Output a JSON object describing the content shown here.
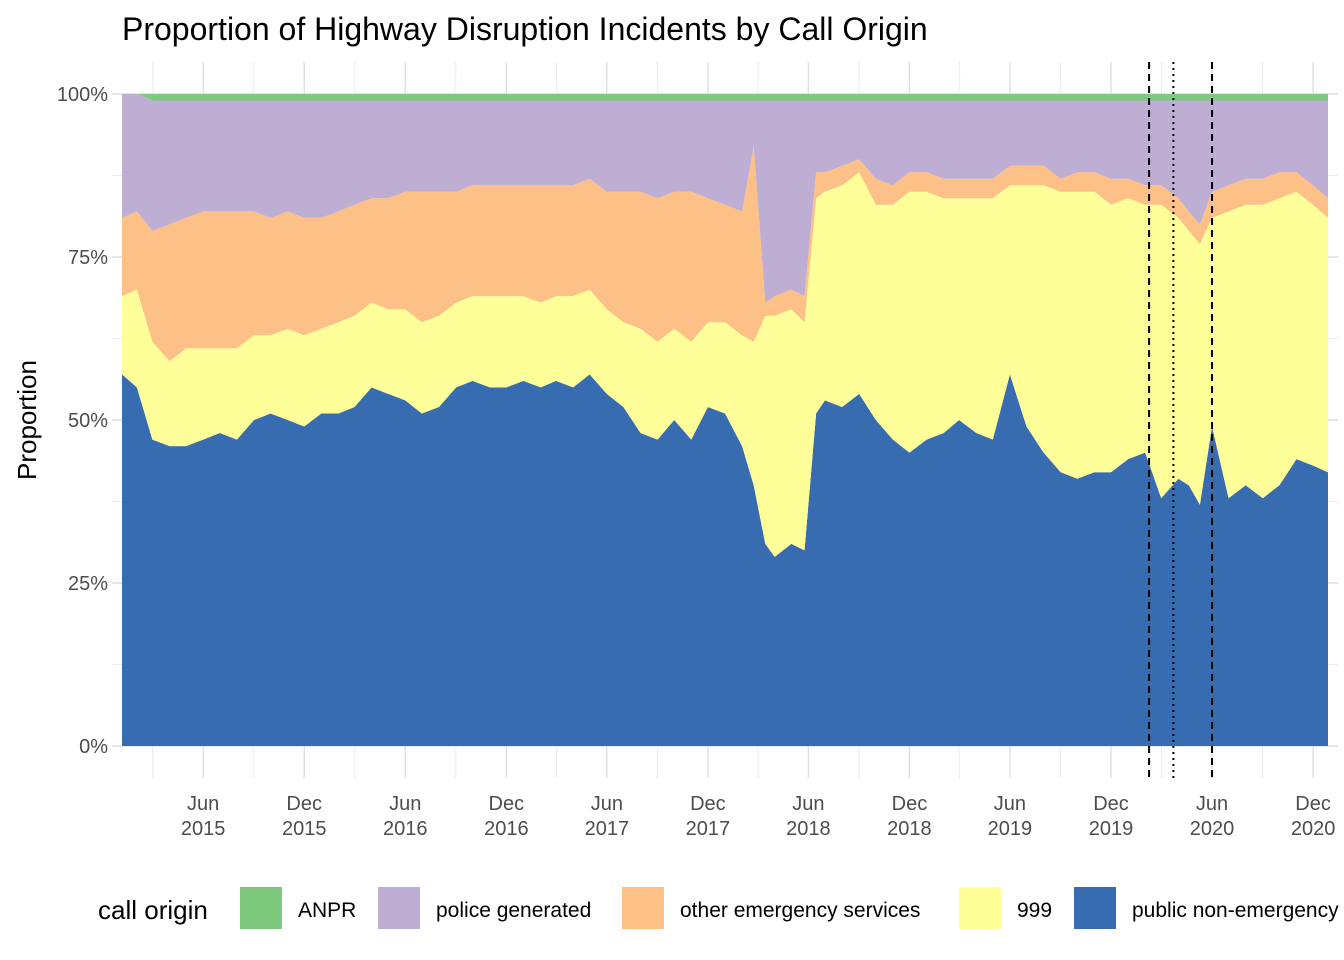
{
  "chart_data": {
    "type": "area",
    "title": "Proportion of Highway Disruption Incidents by Call Origin",
    "xlabel": "",
    "ylabel": "Proportion",
    "ylim": [
      0,
      1
    ],
    "y_ticks": [
      {
        "value": 0,
        "label": "0%"
      },
      {
        "value": 0.25,
        "label": "25%"
      },
      {
        "value": 0.5,
        "label": "50%"
      },
      {
        "value": 0.75,
        "label": "75%"
      },
      {
        "value": 1,
        "label": "100%"
      }
    ],
    "x_range": [
      "2015-01-05",
      "2020-12-28"
    ],
    "x_ticks": [
      {
        "date": "2015-06-01",
        "label1": "Jun",
        "label2": "2015"
      },
      {
        "date": "2015-12-01",
        "label1": "Dec",
        "label2": "2015"
      },
      {
        "date": "2016-06-01",
        "label1": "Jun",
        "label2": "2016"
      },
      {
        "date": "2016-12-01",
        "label1": "Dec",
        "label2": "2016"
      },
      {
        "date": "2017-06-01",
        "label1": "Jun",
        "label2": "2017"
      },
      {
        "date": "2017-12-01",
        "label1": "Dec",
        "label2": "2017"
      },
      {
        "date": "2018-06-01",
        "label1": "Jun",
        "label2": "2018"
      },
      {
        "date": "2018-12-01",
        "label1": "Dec",
        "label2": "2018"
      },
      {
        "date": "2019-06-01",
        "label1": "Jun",
        "label2": "2019"
      },
      {
        "date": "2019-12-01",
        "label1": "Dec",
        "label2": "2019"
      },
      {
        "date": "2020-06-01",
        "label1": "Jun",
        "label2": "2020"
      },
      {
        "date": "2020-12-01",
        "label1": "Dec",
        "label2": "2020"
      }
    ],
    "grid": true,
    "legend": {
      "title": "call origin",
      "position": "bottom",
      "entries": [
        {
          "name": "ANPR",
          "color": "#7fc97f"
        },
        {
          "name": "police generated",
          "color": "#beaed4"
        },
        {
          "name": "other emergency services",
          "color": "#fdc086"
        },
        {
          "name": "999",
          "color": "#ffff99"
        },
        {
          "name": "public non-emergency",
          "color": "#386cb0"
        }
      ]
    },
    "vlines": [
      {
        "date": "2020-02-08",
        "style": "dashed"
      },
      {
        "date": "2020-03-23",
        "style": "dotted"
      },
      {
        "date": "2020-06-01",
        "style": "dashed"
      }
    ],
    "x": [
      "2015-01-05",
      "2015-02-01",
      "2015-03-01",
      "2015-04-01",
      "2015-05-01",
      "2015-06-01",
      "2015-07-01",
      "2015-08-01",
      "2015-09-01",
      "2015-10-01",
      "2015-11-01",
      "2015-12-01",
      "2016-01-01",
      "2016-02-01",
      "2016-03-01",
      "2016-04-01",
      "2016-05-01",
      "2016-06-01",
      "2016-07-01",
      "2016-08-01",
      "2016-09-01",
      "2016-10-01",
      "2016-11-01",
      "2016-12-01",
      "2017-01-01",
      "2017-02-01",
      "2017-03-01",
      "2017-04-01",
      "2017-05-01",
      "2017-06-01",
      "2017-07-01",
      "2017-08-01",
      "2017-09-01",
      "2017-10-01",
      "2017-11-01",
      "2017-12-01",
      "2018-01-01",
      "2018-02-01",
      "2018-02-22",
      "2018-03-15",
      "2018-04-01",
      "2018-05-01",
      "2018-05-25",
      "2018-06-15",
      "2018-07-01",
      "2018-08-01",
      "2018-09-01",
      "2018-10-01",
      "2018-11-01",
      "2018-12-01",
      "2019-01-01",
      "2019-02-01",
      "2019-03-01",
      "2019-04-01",
      "2019-05-01",
      "2019-06-01",
      "2019-07-01",
      "2019-08-01",
      "2019-09-01",
      "2019-10-01",
      "2019-11-01",
      "2019-12-01",
      "2020-01-01",
      "2020-02-01",
      "2020-03-01",
      "2020-04-01",
      "2020-04-20",
      "2020-05-10",
      "2020-06-01",
      "2020-07-01",
      "2020-08-01",
      "2020-09-01",
      "2020-10-01",
      "2020-11-01",
      "2020-12-01",
      "2020-12-28"
    ],
    "series": [
      {
        "name": "public non-emergency",
        "values": [
          0.57,
          0.55,
          0.47,
          0.46,
          0.46,
          0.47,
          0.48,
          0.47,
          0.5,
          0.51,
          0.5,
          0.49,
          0.51,
          0.51,
          0.52,
          0.55,
          0.54,
          0.53,
          0.51,
          0.52,
          0.55,
          0.56,
          0.55,
          0.55,
          0.56,
          0.55,
          0.56,
          0.55,
          0.57,
          0.54,
          0.52,
          0.48,
          0.47,
          0.5,
          0.47,
          0.52,
          0.51,
          0.46,
          0.4,
          0.31,
          0.29,
          0.31,
          0.3,
          0.51,
          0.53,
          0.52,
          0.54,
          0.5,
          0.47,
          0.45,
          0.47,
          0.48,
          0.5,
          0.48,
          0.47,
          0.57,
          0.49,
          0.45,
          0.42,
          0.41,
          0.42,
          0.42,
          0.44,
          0.45,
          0.38,
          0.41,
          0.4,
          0.37,
          0.49,
          0.38,
          0.4,
          0.38,
          0.4,
          0.44,
          0.43,
          0.42
        ]
      },
      {
        "name": "999",
        "values": [
          0.12,
          0.15,
          0.15,
          0.13,
          0.15,
          0.14,
          0.13,
          0.14,
          0.13,
          0.12,
          0.14,
          0.14,
          0.13,
          0.14,
          0.14,
          0.13,
          0.13,
          0.14,
          0.14,
          0.14,
          0.13,
          0.13,
          0.14,
          0.14,
          0.13,
          0.13,
          0.13,
          0.14,
          0.13,
          0.13,
          0.13,
          0.16,
          0.15,
          0.14,
          0.15,
          0.13,
          0.14,
          0.17,
          0.22,
          0.35,
          0.37,
          0.36,
          0.35,
          0.33,
          0.32,
          0.34,
          0.34,
          0.33,
          0.36,
          0.4,
          0.38,
          0.36,
          0.34,
          0.36,
          0.37,
          0.29,
          0.37,
          0.41,
          0.43,
          0.44,
          0.43,
          0.41,
          0.4,
          0.38,
          0.45,
          0.4,
          0.39,
          0.4,
          0.32,
          0.44,
          0.43,
          0.45,
          0.44,
          0.41,
          0.4,
          0.39
        ]
      },
      {
        "name": "other emergency services",
        "values": [
          0.12,
          0.12,
          0.17,
          0.21,
          0.2,
          0.21,
          0.21,
          0.21,
          0.19,
          0.18,
          0.18,
          0.18,
          0.17,
          0.17,
          0.17,
          0.16,
          0.17,
          0.18,
          0.2,
          0.19,
          0.17,
          0.17,
          0.17,
          0.17,
          0.17,
          0.18,
          0.17,
          0.17,
          0.17,
          0.18,
          0.2,
          0.21,
          0.22,
          0.21,
          0.23,
          0.19,
          0.18,
          0.19,
          0.3,
          0.02,
          0.03,
          0.03,
          0.04,
          0.04,
          0.03,
          0.03,
          0.02,
          0.04,
          0.03,
          0.03,
          0.03,
          0.03,
          0.03,
          0.03,
          0.03,
          0.03,
          0.03,
          0.03,
          0.02,
          0.03,
          0.03,
          0.04,
          0.03,
          0.03,
          0.03,
          0.03,
          0.03,
          0.03,
          0.04,
          0.04,
          0.04,
          0.04,
          0.04,
          0.03,
          0.03,
          0.03
        ]
      },
      {
        "name": "police generated",
        "values": [
          0.19,
          0.18,
          0.2,
          0.19,
          0.18,
          0.17,
          0.17,
          0.17,
          0.17,
          0.18,
          0.17,
          0.18,
          0.18,
          0.17,
          0.16,
          0.15,
          0.15,
          0.14,
          0.14,
          0.14,
          0.14,
          0.13,
          0.13,
          0.13,
          0.13,
          0.13,
          0.13,
          0.13,
          0.12,
          0.14,
          0.14,
          0.14,
          0.15,
          0.14,
          0.14,
          0.15,
          0.16,
          0.17,
          0.07,
          0.31,
          0.3,
          0.29,
          0.3,
          0.11,
          0.11,
          0.1,
          0.09,
          0.12,
          0.13,
          0.11,
          0.11,
          0.12,
          0.12,
          0.12,
          0.12,
          0.1,
          0.1,
          0.1,
          0.12,
          0.11,
          0.11,
          0.12,
          0.12,
          0.13,
          0.13,
          0.15,
          0.17,
          0.19,
          0.14,
          0.13,
          0.12,
          0.12,
          0.11,
          0.11,
          0.13,
          0.15
        ]
      },
      {
        "name": "ANPR",
        "values": [
          0.0,
          0.0,
          0.01,
          0.01,
          0.01,
          0.01,
          0.01,
          0.01,
          0.01,
          0.01,
          0.01,
          0.01,
          0.01,
          0.01,
          0.01,
          0.01,
          0.01,
          0.01,
          0.01,
          0.01,
          0.01,
          0.01,
          0.01,
          0.01,
          0.01,
          0.01,
          0.01,
          0.01,
          0.01,
          0.01,
          0.01,
          0.01,
          0.01,
          0.01,
          0.01,
          0.01,
          0.01,
          0.01,
          0.01,
          0.01,
          0.01,
          0.01,
          0.01,
          0.01,
          0.01,
          0.01,
          0.01,
          0.01,
          0.01,
          0.01,
          0.01,
          0.01,
          0.01,
          0.01,
          0.01,
          0.01,
          0.01,
          0.01,
          0.01,
          0.01,
          0.01,
          0.01,
          0.01,
          0.01,
          0.01,
          0.01,
          0.01,
          0.01,
          0.01,
          0.01,
          0.01,
          0.01,
          0.01,
          0.01,
          0.01,
          0.01
        ]
      }
    ]
  }
}
